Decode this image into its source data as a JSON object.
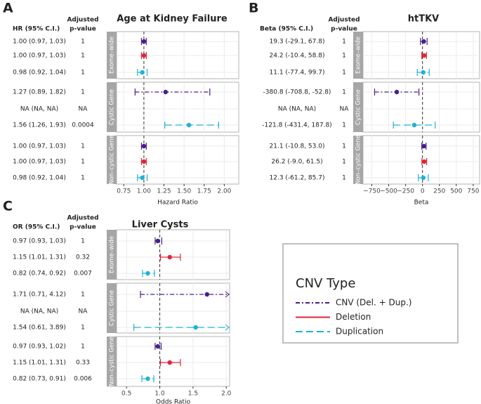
{
  "chart_data": [
    {
      "type": "forest",
      "panel_label": "A",
      "title": "Age at Kidney Failure",
      "ci_header": "HR (95% C.I.)",
      "p_header": [
        "Adjusted",
        "p-value"
      ],
      "xlabel": "Hazard Ratio",
      "groups": [
        "Exome–wide",
        "Cystic Gene",
        "Non–cystic Gene"
      ],
      "ref_line": 1,
      "xlim": [
        0.66,
        2.18
      ],
      "xticks": [
        0.75,
        {
          "value": 1,
          "label": "1.00"
        },
        1.25,
        {
          "value": 1.5,
          "label": "1.50"
        },
        1.75,
        {
          "value": 2,
          "label": "2.00"
        }
      ],
      "series": [
        {
          "color": "#4a1d8c",
          "dash": "6,3,2,3",
          "values": [
            1.0,
            1.27,
            1.0
          ],
          "lower": [
            0.97,
            0.89,
            0.97
          ],
          "upper": [
            1.03,
            1.82,
            1.03
          ],
          "value_labels": [
            "1.00 (0.97, 1.03)",
            "1.27 (0.89, 1.82)",
            "1.00 (0.97, 1.03)"
          ],
          "p_labels": [
            "1",
            "1",
            "1"
          ]
        },
        {
          "color": "#e0263a",
          "dash": "none",
          "values": [
            1.0,
            null,
            1.0
          ],
          "lower": [
            0.97,
            null,
            0.97
          ],
          "upper": [
            1.03,
            null,
            1.03
          ],
          "value_labels": [
            "1.00 (0.97, 1.03)",
            "NA (NA, NA)",
            "1.00 (0.97, 1.03)"
          ],
          "p_labels": [
            "1",
            "NA",
            "1"
          ]
        },
        {
          "color": "#1fb2d6",
          "dash": "10,5",
          "values": [
            0.98,
            1.56,
            0.98
          ],
          "lower": [
            0.92,
            1.26,
            0.92
          ],
          "upper": [
            1.04,
            1.93,
            1.04
          ],
          "value_labels": [
            "0.98 (0.92, 1.04)",
            "1.56 (1.26, 1.93)",
            "0.98 (0.92, 1.04)"
          ],
          "p_labels": [
            "1",
            "0.0004",
            "1"
          ]
        }
      ]
    },
    {
      "type": "forest",
      "panel_label": "B",
      "title": "htTKV",
      "ci_header": "Beta (95% C.I.)",
      "p_header": [
        "Adjusted",
        "p-value"
      ],
      "xlabel": "Beta",
      "groups": [
        "Exome–wide",
        "Cystic Gene",
        "Non–cystic Gene"
      ],
      "ref_line": 0,
      "xlim": [
        -880,
        845
      ],
      "xticks": [
        {
          "value": -750,
          "label": "−750"
        },
        {
          "value": -500,
          "label": "−500"
        },
        {
          "value": -250,
          "label": "−250"
        },
        0,
        250,
        500,
        750
      ],
      "series": [
        {
          "color": "#4a1d8c",
          "dash": "6,3,2,3",
          "values": [
            19.3,
            -380.8,
            21.1
          ],
          "lower": [
            -29.1,
            -708.8,
            -10.8
          ],
          "upper": [
            67.8,
            -52.8,
            53.0
          ],
          "value_labels": [
            "19.3 (-29.1, 67.8)",
            "-380.8 (-708.8, -52.8)",
            "21.1 (-10.8, 53.0)"
          ],
          "p_labels": [
            "1",
            "1",
            "1"
          ]
        },
        {
          "color": "#e0263a",
          "dash": "none",
          "values": [
            24.2,
            null,
            26.2
          ],
          "lower": [
            -10.4,
            null,
            -9.0
          ],
          "upper": [
            58.8,
            null,
            61.5
          ],
          "value_labels": [
            "24.2 (-10.4, 58.8)",
            "NA (NA, NA)",
            "26.2 (-9.0, 61.5)"
          ],
          "p_labels": [
            "1",
            "NA",
            "1"
          ]
        },
        {
          "color": "#1fb2d6",
          "dash": "10,5",
          "values": [
            11.1,
            -121.8,
            12.3
          ],
          "lower": [
            -77.4,
            -431.4,
            -61.2
          ],
          "upper": [
            99.7,
            187.8,
            85.7
          ],
          "value_labels": [
            "11.1 (-77.4, 99.7)",
            "-121.8 (-431.4, 187.8)",
            "12.3 (-61.2, 85.7)"
          ],
          "p_labels": [
            "1",
            "1",
            "1"
          ]
        }
      ]
    },
    {
      "type": "forest",
      "panel_label": "C",
      "title": "Liver Cysts",
      "ci_header": "OR (95% C.I.)",
      "p_header": [
        "Adjusted",
        "p-value"
      ],
      "xlabel": "Odds Ratio",
      "groups": [
        "Exome–wide",
        "Cystic Gene",
        "Non–cystic Gene"
      ],
      "ref_line": 1,
      "xlim": [
        0.35,
        2.05
      ],
      "xticks": [
        0.5,
        {
          "value": 1,
          "label": "1.0"
        },
        1.5,
        {
          "value": 2,
          "label": "2.0"
        }
      ],
      "series": [
        {
          "color": "#4a1d8c",
          "dash": "6,3,2,3",
          "values": [
            0.97,
            1.71,
            0.97
          ],
          "lower": [
            0.93,
            0.71,
            0.93
          ],
          "upper": [
            1.03,
            4.12,
            1.02
          ],
          "value_labels": [
            "0.97 (0.93, 1.03)",
            "1.71 (0.71, 4.12)",
            "0.97 (0.93, 1.02)"
          ],
          "p_labels": [
            "1",
            "1",
            "1"
          ]
        },
        {
          "color": "#e0263a",
          "dash": "none",
          "values": [
            1.15,
            null,
            1.15
          ],
          "lower": [
            1.01,
            null,
            1.01
          ],
          "upper": [
            1.31,
            null,
            1.31
          ],
          "value_labels": [
            "1.15 (1.01, 1.31)",
            "NA (NA, NA)",
            "1.15 (1.01, 1.31)"
          ],
          "p_labels": [
            "0.32",
            "NA",
            "0.33"
          ]
        },
        {
          "color": "#1fb2d6",
          "dash": "10,5",
          "values": [
            0.82,
            1.54,
            0.82
          ],
          "lower": [
            0.74,
            0.61,
            0.73
          ],
          "upper": [
            0.92,
            3.89,
            0.91
          ],
          "value_labels": [
            "0.82 (0.74, 0.92)",
            "1.54 (0.61, 3.89)",
            "0.82 (0.73, 0.91)"
          ],
          "p_labels": [
            "0.007",
            "1",
            "0.006"
          ]
        }
      ]
    }
  ],
  "legend": {
    "title": "CNV Type",
    "entries": [
      {
        "name": "CNV (Del. + Dup.)",
        "color": "#4a1d8c",
        "dash": "6,3,2,3"
      },
      {
        "name": "Deletion",
        "color": "#e0263a",
        "dash": "none"
      },
      {
        "name": "Duplication",
        "color": "#1fb2d6",
        "dash": "10,5"
      }
    ]
  }
}
